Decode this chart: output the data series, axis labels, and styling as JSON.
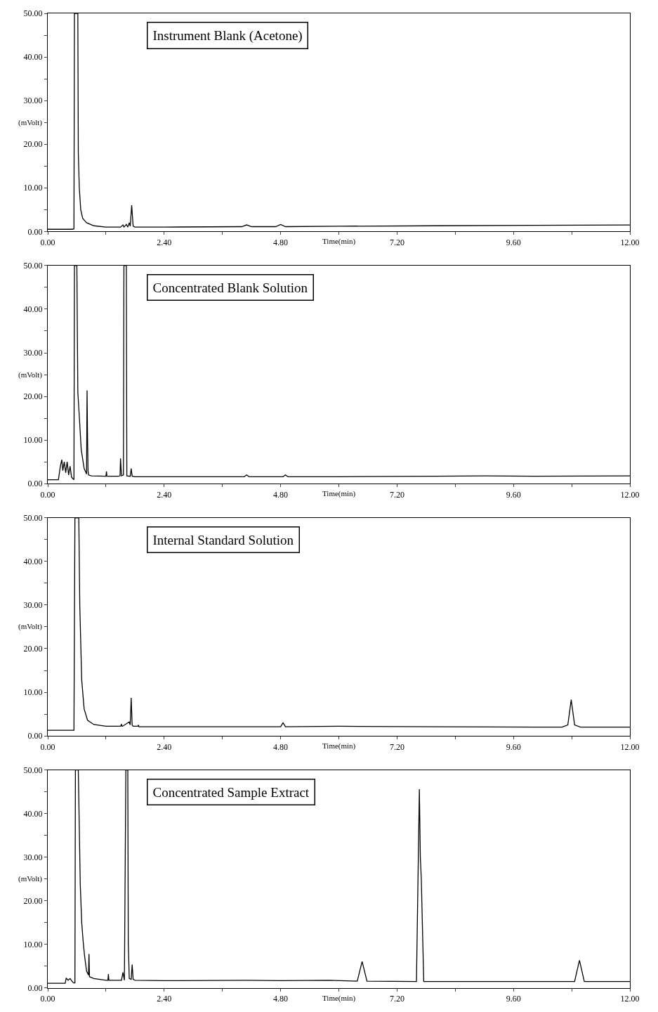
{
  "chart_data": [
    {
      "type": "line",
      "title": "Instrument Blank (Acetone)",
      "xlabel": "Time(min)",
      "ylabel": "(mVolt)",
      "color": "#000000",
      "xlim": [
        0,
        12
      ],
      "ylim": [
        0,
        50
      ],
      "xticks": [
        {
          "value": 0,
          "label": "0.00"
        },
        {
          "value": 1.2,
          "label": null
        },
        {
          "value": 2.4,
          "label": "2.40"
        },
        {
          "value": 3.6,
          "label": null
        },
        {
          "value": 4.8,
          "label": "4.80"
        },
        {
          "value": 6,
          "label": null
        },
        {
          "value": 7.2,
          "label": "7.20"
        },
        {
          "value": 8.4,
          "label": null
        },
        {
          "value": 9.6,
          "label": "9.60"
        },
        {
          "value": 10.8,
          "label": null
        },
        {
          "value": 12,
          "label": "12.00"
        }
      ],
      "yticks": [
        {
          "value": 0,
          "label": "0.00"
        },
        {
          "value": 5,
          "label": null
        },
        {
          "value": 10,
          "label": "10.00"
        },
        {
          "value": 15,
          "label": null
        },
        {
          "value": 20,
          "label": "20.00"
        },
        {
          "value": 25,
          "label": null
        },
        {
          "value": 30,
          "label": "30.00"
        },
        {
          "value": 35,
          "label": null
        },
        {
          "value": 40,
          "label": "40.00"
        },
        {
          "value": 45,
          "label": null
        },
        {
          "value": 50,
          "label": "50.00"
        }
      ],
      "x": [
        0,
        0.5,
        0.54,
        0.55,
        0.62,
        0.63,
        0.65,
        0.68,
        0.72,
        0.8,
        0.95,
        1.2,
        1.5,
        1.55,
        1.57,
        1.62,
        1.65,
        1.68,
        1.7,
        1.73,
        1.76,
        1.8,
        2.4,
        4.0,
        4.1,
        4.2,
        4.7,
        4.8,
        4.9,
        6,
        8,
        10,
        12
      ],
      "values": [
        0.5,
        0.5,
        0.6,
        50,
        50,
        18,
        10,
        5,
        3,
        2,
        1.3,
        1,
        1,
        1.5,
        1,
        1.6,
        1,
        2,
        1.2,
        6,
        1.2,
        1,
        1,
        1.1,
        1.5,
        1.1,
        1.1,
        1.6,
        1.1,
        1.2,
        1.3,
        1.4,
        1.5
      ]
    },
    {
      "type": "line",
      "title": "Concentrated Blank Solution",
      "xlabel": "Time(min)",
      "ylabel": "(mVolt)",
      "color": "#000000",
      "xlim": [
        0,
        12
      ],
      "ylim": [
        0,
        50
      ],
      "xticks": [
        {
          "value": 0,
          "label": "0.00"
        },
        {
          "value": 1.2,
          "label": null
        },
        {
          "value": 2.4,
          "label": "2.40"
        },
        {
          "value": 3.6,
          "label": null
        },
        {
          "value": 4.8,
          "label": "4.80"
        },
        {
          "value": 6,
          "label": null
        },
        {
          "value": 7.2,
          "label": "7.20"
        },
        {
          "value": 8.4,
          "label": null
        },
        {
          "value": 9.6,
          "label": "9.60"
        },
        {
          "value": 10.8,
          "label": null
        },
        {
          "value": 12,
          "label": "12.00"
        }
      ],
      "yticks": [
        {
          "value": 0,
          "label": "0.00"
        },
        {
          "value": 5,
          "label": null
        },
        {
          "value": 10,
          "label": "10.00"
        },
        {
          "value": 15,
          "label": null
        },
        {
          "value": 20,
          "label": "20.00"
        },
        {
          "value": 25,
          "label": null
        },
        {
          "value": 30,
          "label": "30.00"
        },
        {
          "value": 35,
          "label": null
        },
        {
          "value": 40,
          "label": "40.00"
        },
        {
          "value": 45,
          "label": null
        },
        {
          "value": 50,
          "label": "50.00"
        }
      ],
      "x": [
        0,
        0.22,
        0.26,
        0.29,
        0.31,
        0.34,
        0.37,
        0.4,
        0.43,
        0.46,
        0.49,
        0.53,
        0.54,
        0.55,
        0.6,
        0.62,
        0.65,
        0.69,
        0.75,
        0.8,
        0.81,
        0.82,
        0.83,
        0.84,
        0.9,
        1.2,
        1.21,
        1.22,
        1.45,
        1.49,
        1.5,
        1.52,
        1.56,
        1.57,
        1.62,
        1.63,
        1.7,
        1.72,
        1.74,
        1.8,
        2.4,
        4.05,
        4.1,
        4.15,
        4.85,
        4.9,
        4.95,
        6,
        8,
        9,
        10,
        12
      ],
      "values": [
        0.9,
        0.9,
        4,
        5.5,
        3,
        5,
        2.5,
        5,
        2,
        4,
        1.5,
        1,
        1,
        50,
        50,
        21,
        15.5,
        7.8,
        3.5,
        2.2,
        21.4,
        11,
        3,
        2,
        1.8,
        1.7,
        2.8,
        1.7,
        1.7,
        1.8,
        5.8,
        1.8,
        2,
        50,
        50,
        1.8,
        1.7,
        3.5,
        1.7,
        1.6,
        1.6,
        1.6,
        2,
        1.6,
        1.6,
        2,
        1.6,
        1.6,
        1.7,
        1.8,
        1.7,
        1.8
      ]
    },
    {
      "type": "line",
      "title": "Internal Standard Solution",
      "xlabel": "Time(min)",
      "ylabel": "(mVolt)",
      "color": "#000000",
      "xlim": [
        0,
        12
      ],
      "ylim": [
        0,
        50
      ],
      "xticks": [
        {
          "value": 0,
          "label": "0.00"
        },
        {
          "value": 1.2,
          "label": null
        },
        {
          "value": 2.4,
          "label": "2.40"
        },
        {
          "value": 3.6,
          "label": null
        },
        {
          "value": 4.8,
          "label": "4.80"
        },
        {
          "value": 6,
          "label": null
        },
        {
          "value": 7.2,
          "label": "7.20"
        },
        {
          "value": 8.4,
          "label": null
        },
        {
          "value": 9.6,
          "label": "9.60"
        },
        {
          "value": 10.8,
          "label": null
        },
        {
          "value": 12,
          "label": "12.00"
        }
      ],
      "yticks": [
        {
          "value": 0,
          "label": "0.00"
        },
        {
          "value": 5,
          "label": null
        },
        {
          "value": 10,
          "label": "10.00"
        },
        {
          "value": 15,
          "label": null
        },
        {
          "value": 20,
          "label": "20.00"
        },
        {
          "value": 25,
          "label": null
        },
        {
          "value": 30,
          "label": "30.00"
        },
        {
          "value": 35,
          "label": null
        },
        {
          "value": 40,
          "label": "40.00"
        },
        {
          "value": 45,
          "label": null
        },
        {
          "value": 50,
          "label": "50.00"
        }
      ],
      "x": [
        0,
        0.54,
        0.56,
        0.64,
        0.66,
        0.7,
        0.75,
        0.82,
        0.95,
        1.2,
        1.5,
        1.52,
        1.53,
        1.54,
        1.68,
        1.7,
        1.72,
        1.74,
        1.76,
        1.86,
        1.87,
        1.88,
        2.4,
        4.0,
        4.8,
        4.85,
        4.9,
        6.0,
        8,
        10.6,
        10.72,
        10.79,
        10.86,
        10.98,
        12
      ],
      "values": [
        1.3,
        1.3,
        50,
        50,
        30,
        12.8,
        6.2,
        3.6,
        2.6,
        2.2,
        2.2,
        2.7,
        2.2,
        2.2,
        3.2,
        2.5,
        8.7,
        2.5,
        2.2,
        2.2,
        2.5,
        2.1,
        2.1,
        2.1,
        2.1,
        3,
        2.1,
        2.2,
        2.1,
        2,
        2.5,
        8.3,
        2.5,
        2,
        2
      ]
    },
    {
      "type": "line",
      "title": "Concentrated Sample Extract",
      "xlabel": "Time(min)",
      "ylabel": "(mVolt)",
      "color": "#000000",
      "xlim": [
        0,
        12
      ],
      "ylim": [
        0,
        50
      ],
      "xticks": [
        {
          "value": 0,
          "label": "0.00"
        },
        {
          "value": 1.2,
          "label": null
        },
        {
          "value": 2.4,
          "label": "2.40"
        },
        {
          "value": 3.6,
          "label": null
        },
        {
          "value": 4.8,
          "label": "4.80"
        },
        {
          "value": 6,
          "label": null
        },
        {
          "value": 7.2,
          "label": "7.20"
        },
        {
          "value": 8.4,
          "label": null
        },
        {
          "value": 9.6,
          "label": "9.60"
        },
        {
          "value": 10.8,
          "label": null
        },
        {
          "value": 12,
          "label": "12.00"
        }
      ],
      "yticks": [
        {
          "value": 0,
          "label": "0.00"
        },
        {
          "value": 5,
          "label": null
        },
        {
          "value": 10,
          "label": "10.00"
        },
        {
          "value": 15,
          "label": null
        },
        {
          "value": 20,
          "label": "20.00"
        },
        {
          "value": 25,
          "label": null
        },
        {
          "value": 30,
          "label": "30.00"
        },
        {
          "value": 35,
          "label": null
        },
        {
          "value": 40,
          "label": "40.00"
        },
        {
          "value": 45,
          "label": null
        },
        {
          "value": 50,
          "label": "50.00"
        }
      ],
      "x": [
        0,
        0.36,
        0.38,
        0.42,
        0.46,
        0.5,
        0.53,
        0.56,
        0.57,
        0.63,
        0.67,
        0.7,
        0.73,
        0.76,
        0.8,
        0.84,
        0.85,
        0.86,
        0.95,
        1.2,
        1.24,
        1.25,
        1.26,
        1.52,
        1.55,
        1.58,
        1.61,
        1.65,
        1.66,
        1.68,
        1.72,
        1.74,
        1.76,
        1.8,
        2.4,
        4.1,
        4.8,
        5.8,
        6.38,
        6.48,
        6.58,
        7.6,
        7.66,
        7.68,
        7.7,
        7.75,
        9.6,
        10.86,
        10.96,
        11.06,
        12
      ],
      "values": [
        1.1,
        1.1,
        2.3,
        1.8,
        2.2,
        1.6,
        1.2,
        1.2,
        50,
        50,
        23.8,
        15,
        10.7,
        7.3,
        3.9,
        3,
        7.8,
        2.6,
        2.2,
        1.8,
        1.8,
        3.2,
        1.8,
        1.8,
        3.6,
        1.8,
        50,
        50,
        10.5,
        2.2,
        2,
        5.4,
        2,
        1.8,
        1.7,
        1.8,
        1.7,
        1.8,
        1.6,
        6.1,
        1.6,
        1.5,
        45.6,
        30,
        25,
        1.5,
        1.5,
        1.5,
        6.4,
        1.5,
        1.5
      ]
    }
  ]
}
